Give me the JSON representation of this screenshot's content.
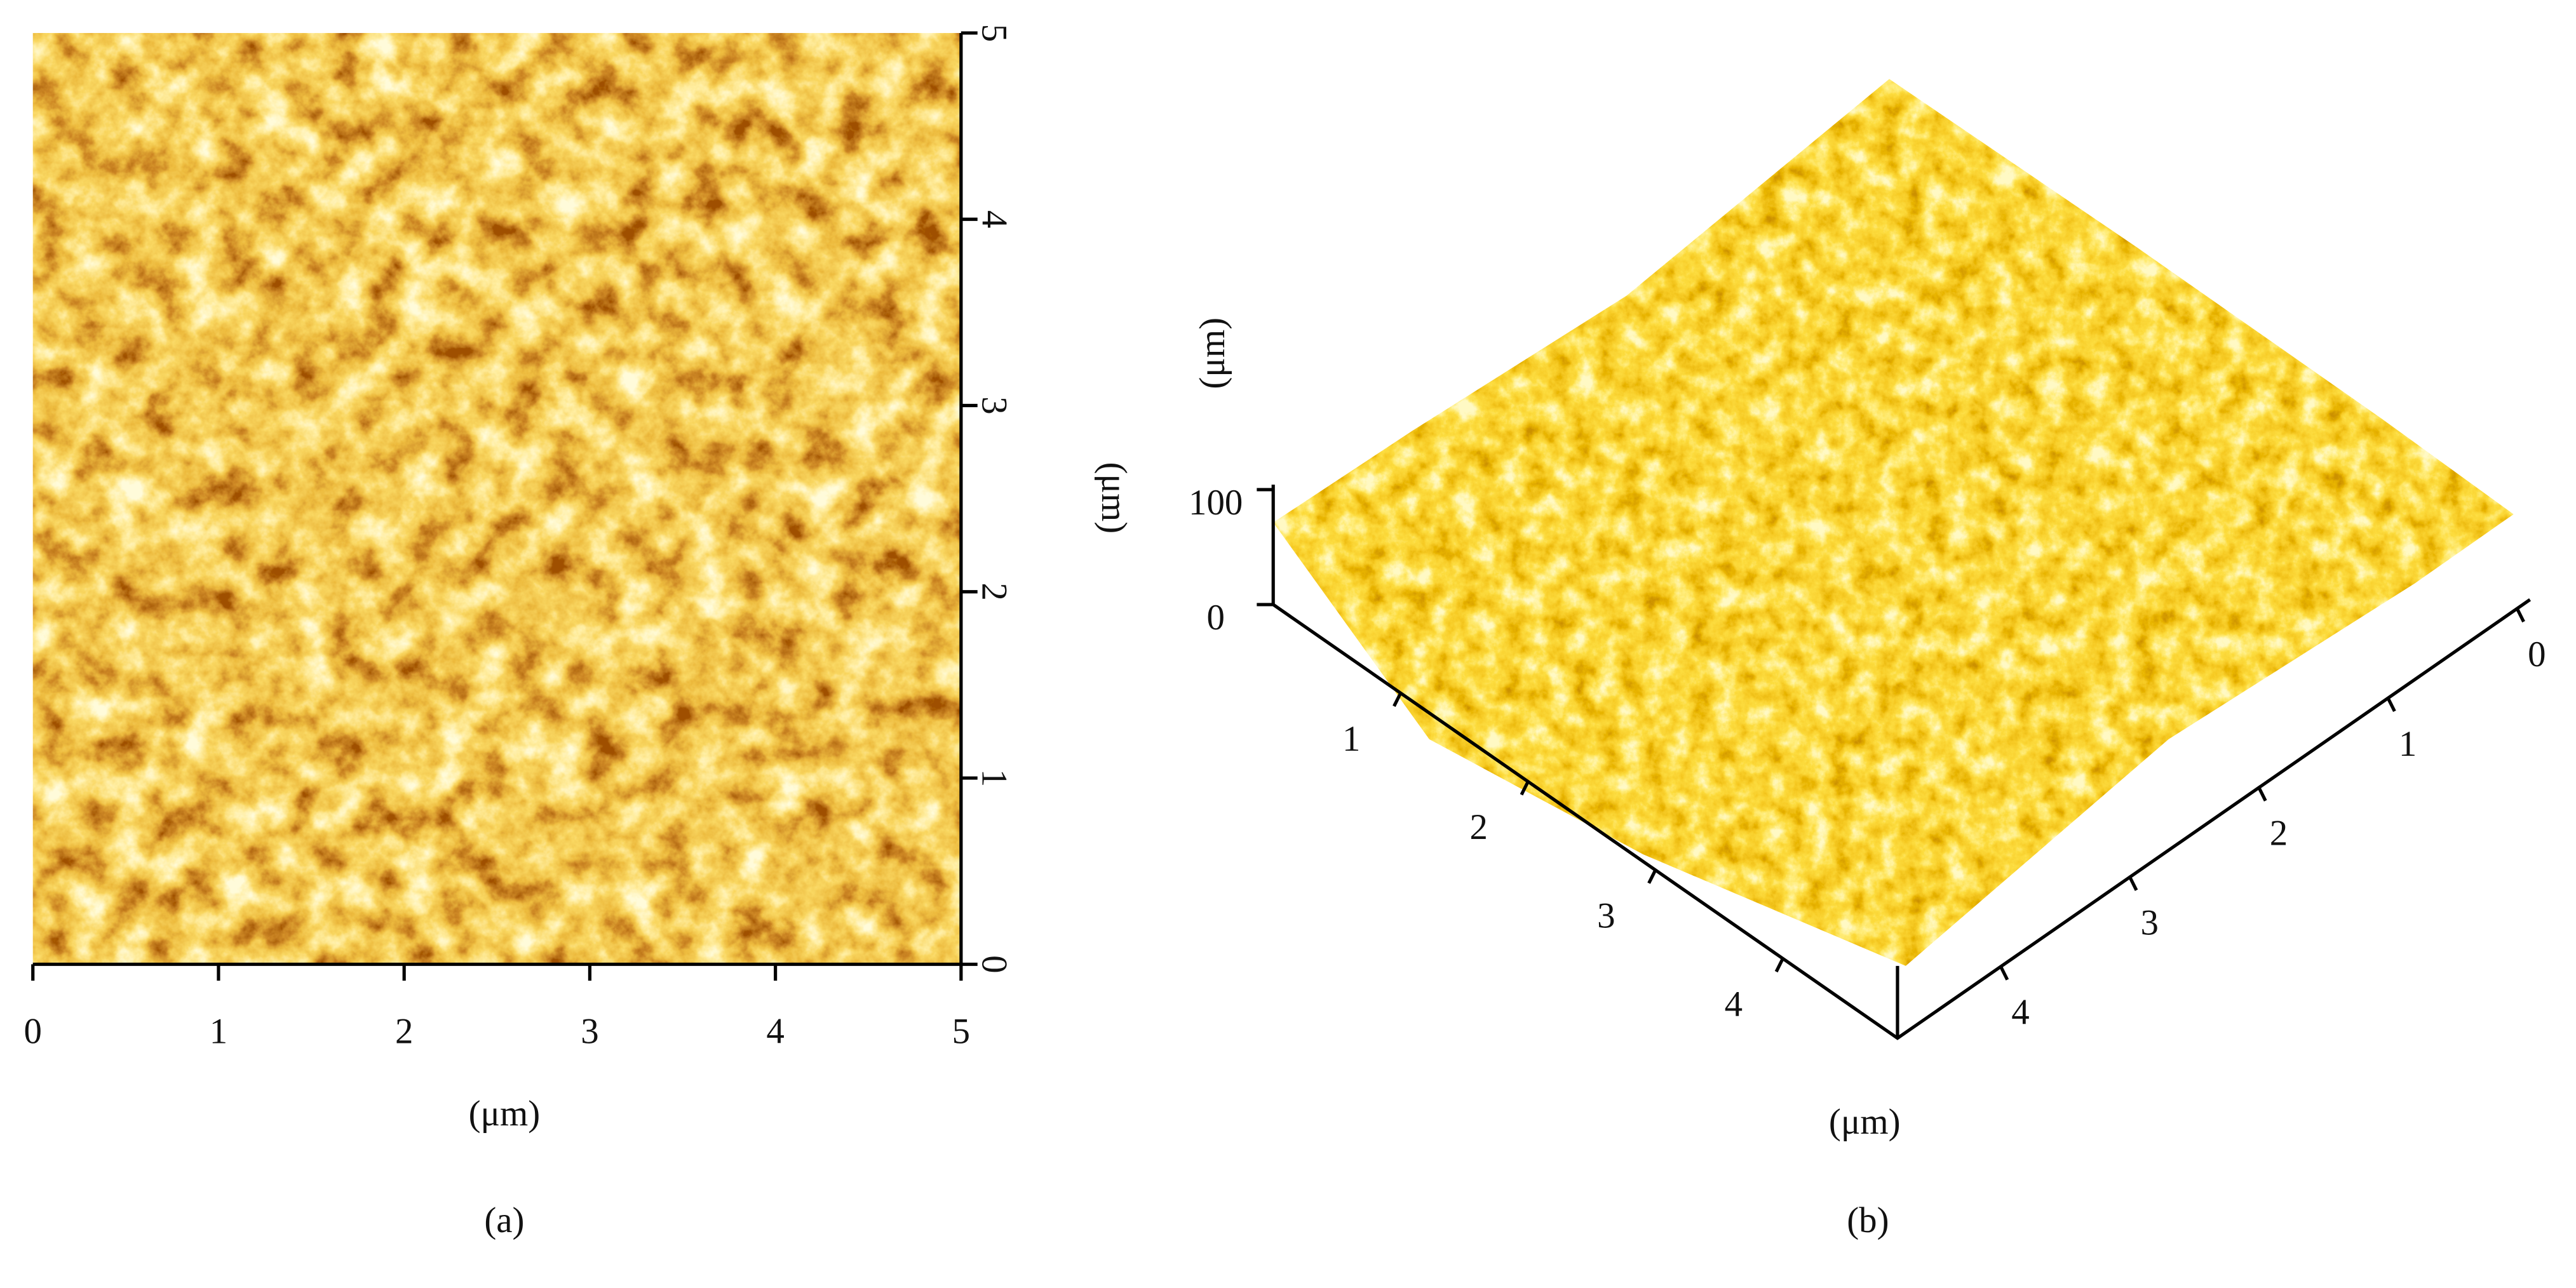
{
  "panel_a": {
    "x_ticks": [
      0,
      1,
      2,
      3,
      4,
      5
    ],
    "y_ticks": [
      0,
      1,
      2,
      3,
      4,
      5
    ],
    "x_label": "(μm)",
    "y_label": "(μm)",
    "caption": "(a)"
  },
  "panel_b": {
    "front_left_ticks": [
      1,
      2,
      3,
      4
    ],
    "front_right_ticks": [
      0,
      1,
      2,
      3,
      4
    ],
    "z_ticks": [
      0,
      100
    ],
    "z_label": "(μm)",
    "xy_label": "(μm)",
    "caption": "(b)"
  }
}
